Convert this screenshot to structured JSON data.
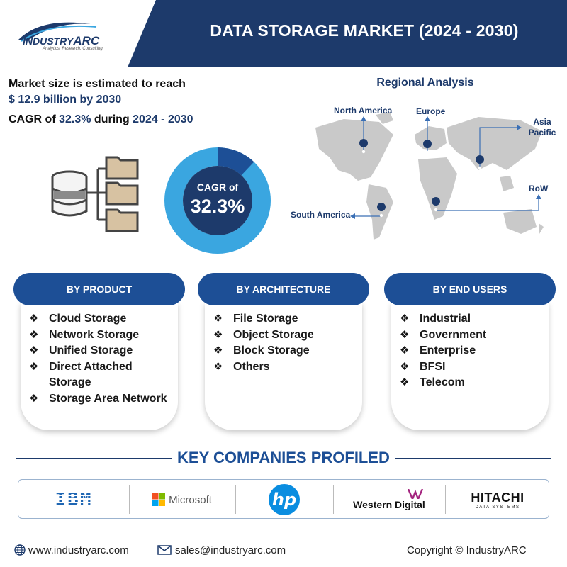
{
  "header": {
    "title": "DATA STORAGE MARKET (2024 - 2030)",
    "logo_main": "INDUSTRY",
    "logo_arc": "ARC",
    "logo_tagline": "Analytics. Research. Consulting"
  },
  "market": {
    "line1": "Market size is estimated to reach",
    "line2": "$ 12.9 billion by 2030",
    "cagr_prefix": "CAGR of ",
    "cagr_value": "32.3%",
    "cagr_mid": " during ",
    "cagr_period": "2024 - 2030"
  },
  "donut": {
    "label": "CAGR of",
    "value": "32.3%",
    "fraction": 0.12,
    "colors": {
      "ring": "#3aa6e0",
      "segment": "#1d4f96",
      "center": "#1d3a6b"
    }
  },
  "regional": {
    "title": "Regional Analysis",
    "regions": [
      "North America",
      "Europe",
      "Asia Pacific",
      "RoW",
      "South America"
    ]
  },
  "segments": [
    {
      "title": "BY PRODUCT",
      "items": [
        "Cloud Storage",
        "Network Storage",
        "Unified Storage",
        "Direct Attached Storage",
        "Storage Area Network"
      ]
    },
    {
      "title": "BY ARCHITECTURE",
      "items": [
        "File Storage",
        "Object Storage",
        "Block Storage",
        "Others"
      ]
    },
    {
      "title": "BY END USERS",
      "items": [
        "Industrial",
        "Government",
        "Enterprise",
        "BFSI",
        "Telecom"
      ]
    }
  ],
  "companies": {
    "title": "KEY COMPANIES PROFILED",
    "list": [
      "IBM",
      "Microsoft",
      "hp",
      "Western Digital",
      "HITACHI"
    ],
    "hitachi_sub": "DATA SYSTEMS"
  },
  "footer": {
    "website": "www.industryarc.com",
    "email": "sales@industryarc.com",
    "copyright": "Copyright © IndustryARC"
  },
  "colors": {
    "navy": "#1d3a6b",
    "blue": "#1d4f96",
    "light_blue": "#3aa6e0"
  }
}
